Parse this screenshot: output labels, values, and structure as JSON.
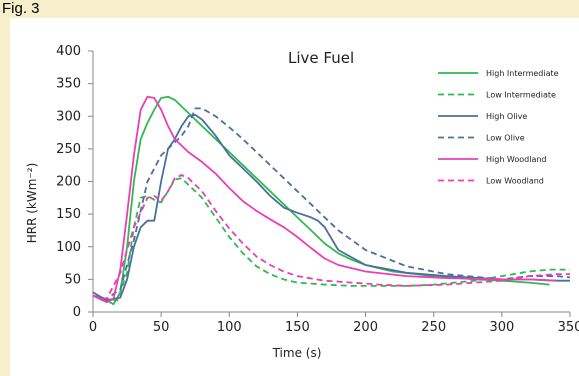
{
  "figure": {
    "label": "Fig. 3"
  },
  "chart_data": {
    "type": "line",
    "title": "Live Fuel",
    "xlabel": "Time (s)",
    "ylabel": "HRR (kWm⁻²)",
    "xlim": [
      0,
      350
    ],
    "ylim": [
      0,
      400
    ],
    "xticks": [
      0,
      50,
      100,
      150,
      200,
      250,
      300,
      350
    ],
    "yticks": [
      0,
      50,
      100,
      150,
      200,
      250,
      300,
      350,
      400
    ],
    "grid": false,
    "legend_position": "top-right",
    "series": [
      {
        "name": "High Intermediate",
        "color": "#2fba4f",
        "dash": "solid",
        "x": [
          0,
          8,
          15,
          20,
          25,
          30,
          35,
          40,
          45,
          50,
          55,
          60,
          70,
          80,
          90,
          100,
          110,
          120,
          130,
          140,
          150,
          160,
          170,
          180,
          190,
          200,
          220,
          250,
          280,
          300,
          320,
          335
        ],
        "y": [
          25,
          20,
          12,
          30,
          100,
          200,
          265,
          290,
          310,
          328,
          330,
          325,
          305,
          285,
          265,
          245,
          225,
          205,
          185,
          165,
          145,
          125,
          105,
          90,
          80,
          72,
          62,
          55,
          50,
          48,
          45,
          42
        ]
      },
      {
        "name": "Low Intermediate",
        "color": "#2fba4f",
        "dash": "dashed",
        "x": [
          0,
          10,
          18,
          25,
          30,
          35,
          40,
          45,
          50,
          55,
          60,
          65,
          70,
          80,
          90,
          100,
          110,
          120,
          130,
          140,
          150,
          170,
          190,
          210,
          230,
          250,
          280,
          300,
          320,
          335,
          350
        ],
        "y": [
          25,
          20,
          18,
          60,
          130,
          175,
          178,
          172,
          168,
          185,
          203,
          205,
          195,
          175,
          145,
          115,
          90,
          70,
          58,
          50,
          45,
          42,
          40,
          40,
          40,
          42,
          48,
          55,
          62,
          65,
          65
        ]
      },
      {
        "name": "High Olive",
        "color": "#4a6f9c",
        "dash": "solid",
        "x": [
          0,
          10,
          20,
          25,
          30,
          35,
          40,
          45,
          50,
          55,
          60,
          65,
          70,
          75,
          80,
          90,
          100,
          110,
          120,
          130,
          140,
          150,
          160,
          165,
          170,
          180,
          200,
          230,
          260,
          300,
          320,
          340,
          350
        ],
        "y": [
          30,
          18,
          22,
          50,
          100,
          130,
          140,
          140,
          200,
          250,
          265,
          285,
          300,
          302,
          295,
          270,
          240,
          220,
          200,
          178,
          160,
          152,
          145,
          140,
          130,
          95,
          72,
          60,
          55,
          50,
          50,
          48,
          48
        ]
      },
      {
        "name": "Low Olive",
        "color": "#4a6f9c",
        "dash": "dashed",
        "x": [
          0,
          10,
          20,
          30,
          40,
          50,
          60,
          65,
          70,
          75,
          80,
          90,
          100,
          110,
          120,
          130,
          140,
          150,
          160,
          170,
          180,
          200,
          230,
          260,
          300,
          320,
          340,
          350
        ],
        "y": [
          25,
          20,
          35,
          110,
          200,
          240,
          260,
          270,
          285,
          312,
          312,
          300,
          283,
          265,
          245,
          225,
          205,
          185,
          165,
          145,
          125,
          95,
          70,
          58,
          50,
          55,
          55,
          53
        ]
      },
      {
        "name": "High Woodland",
        "color": "#e83fb5",
        "dash": "solid",
        "x": [
          0,
          10,
          15,
          20,
          25,
          30,
          35,
          40,
          45,
          50,
          55,
          60,
          70,
          80,
          90,
          100,
          110,
          120,
          130,
          140,
          150,
          160,
          170,
          180,
          200,
          230,
          260,
          300,
          320,
          340
        ],
        "y": [
          25,
          15,
          20,
          65,
          150,
          240,
          310,
          330,
          328,
          310,
          285,
          265,
          245,
          230,
          212,
          190,
          170,
          155,
          142,
          130,
          115,
          98,
          82,
          72,
          62,
          55,
          52,
          50,
          50,
          48
        ]
      },
      {
        "name": "Low Woodland",
        "color": "#e83fb5",
        "dash": "dashed",
        "x": [
          0,
          10,
          20,
          30,
          40,
          45,
          50,
          55,
          60,
          65,
          70,
          80,
          90,
          100,
          110,
          120,
          130,
          140,
          150,
          170,
          190,
          210,
          230,
          260,
          300,
          320,
          340,
          350
        ],
        "y": [
          25,
          20,
          60,
          130,
          175,
          178,
          170,
          185,
          205,
          210,
          205,
          185,
          155,
          128,
          105,
          85,
          72,
          62,
          55,
          48,
          45,
          42,
          40,
          42,
          48,
          55,
          58,
          58
        ]
      }
    ]
  }
}
